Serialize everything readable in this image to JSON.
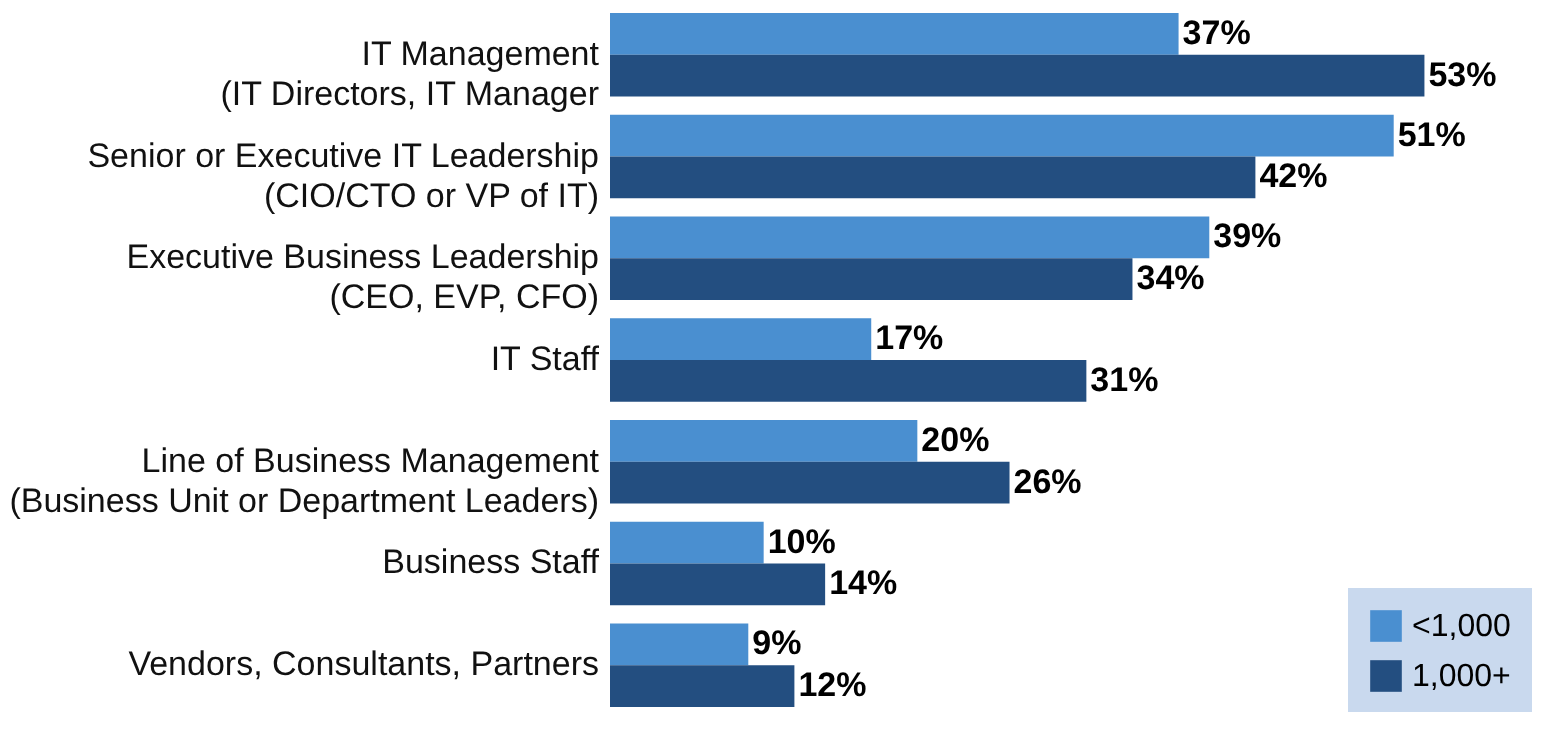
{
  "chart_data": {
    "type": "bar",
    "orientation": "horizontal",
    "categories": [
      "IT Management\n(IT Directors, IT Manager",
      "Senior or Executive IT Leadership\n(CIO/CTO or VP of IT)",
      "Executive Business Leadership\n(CEO, EVP, CFO)",
      "IT Staff",
      "Line of Business Management\n(Business Unit or Department Leaders)",
      "Business Staff",
      "Vendors, Consultants, Partners"
    ],
    "series": [
      {
        "name": "<1,000",
        "color": "#4a8fd0",
        "values": [
          37,
          51,
          39,
          17,
          20,
          10,
          9
        ],
        "value_labels": [
          "37%",
          "51%",
          "39%",
          "17%",
          "20%",
          "10%",
          "9%"
        ]
      },
      {
        "name": "1,000+",
        "color": "#234e80",
        "values": [
          53,
          42,
          34,
          31,
          26,
          14,
          12
        ],
        "value_labels": [
          "53%",
          "42%",
          "34%",
          "31%",
          "26%",
          "14%",
          "12%"
        ]
      }
    ],
    "xlim": [
      0,
      60
    ],
    "tick_labels": "y",
    "grid": false,
    "legend": "bottom right"
  }
}
